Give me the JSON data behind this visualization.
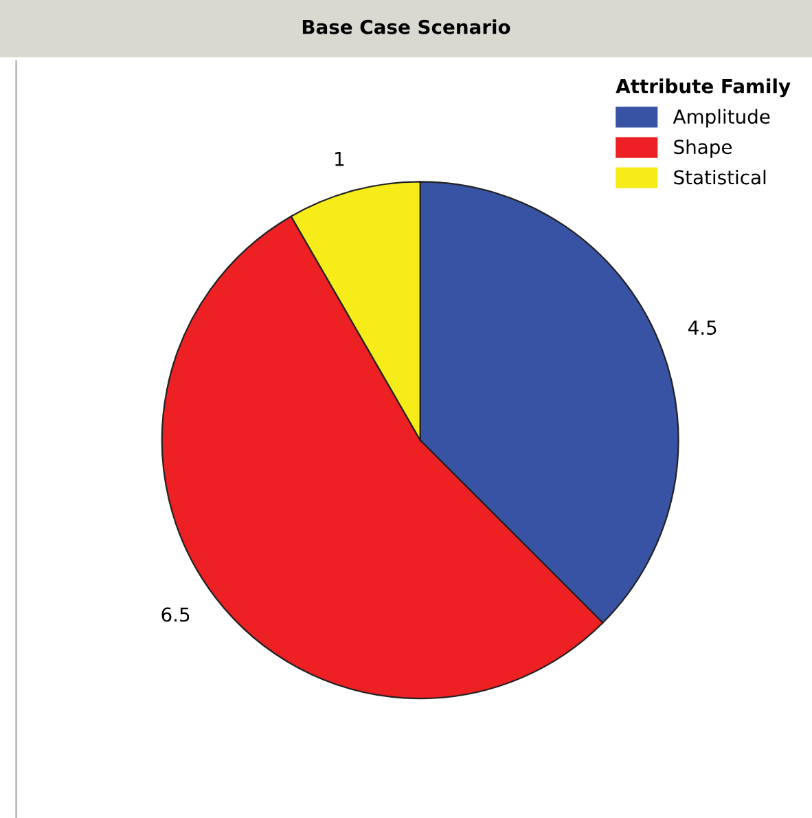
{
  "chart_data": {
    "type": "pie",
    "title": "Base Case Scenario",
    "legend_title": "Attribute Family",
    "categories": [
      "Amplitude",
      "Shape",
      "Statistical"
    ],
    "values": [
      4.5,
      6.5,
      1
    ],
    "colors": [
      "#3953a4",
      "#ed2024",
      "#f5ec1a"
    ],
    "data_labels": true,
    "legend": "top right"
  }
}
